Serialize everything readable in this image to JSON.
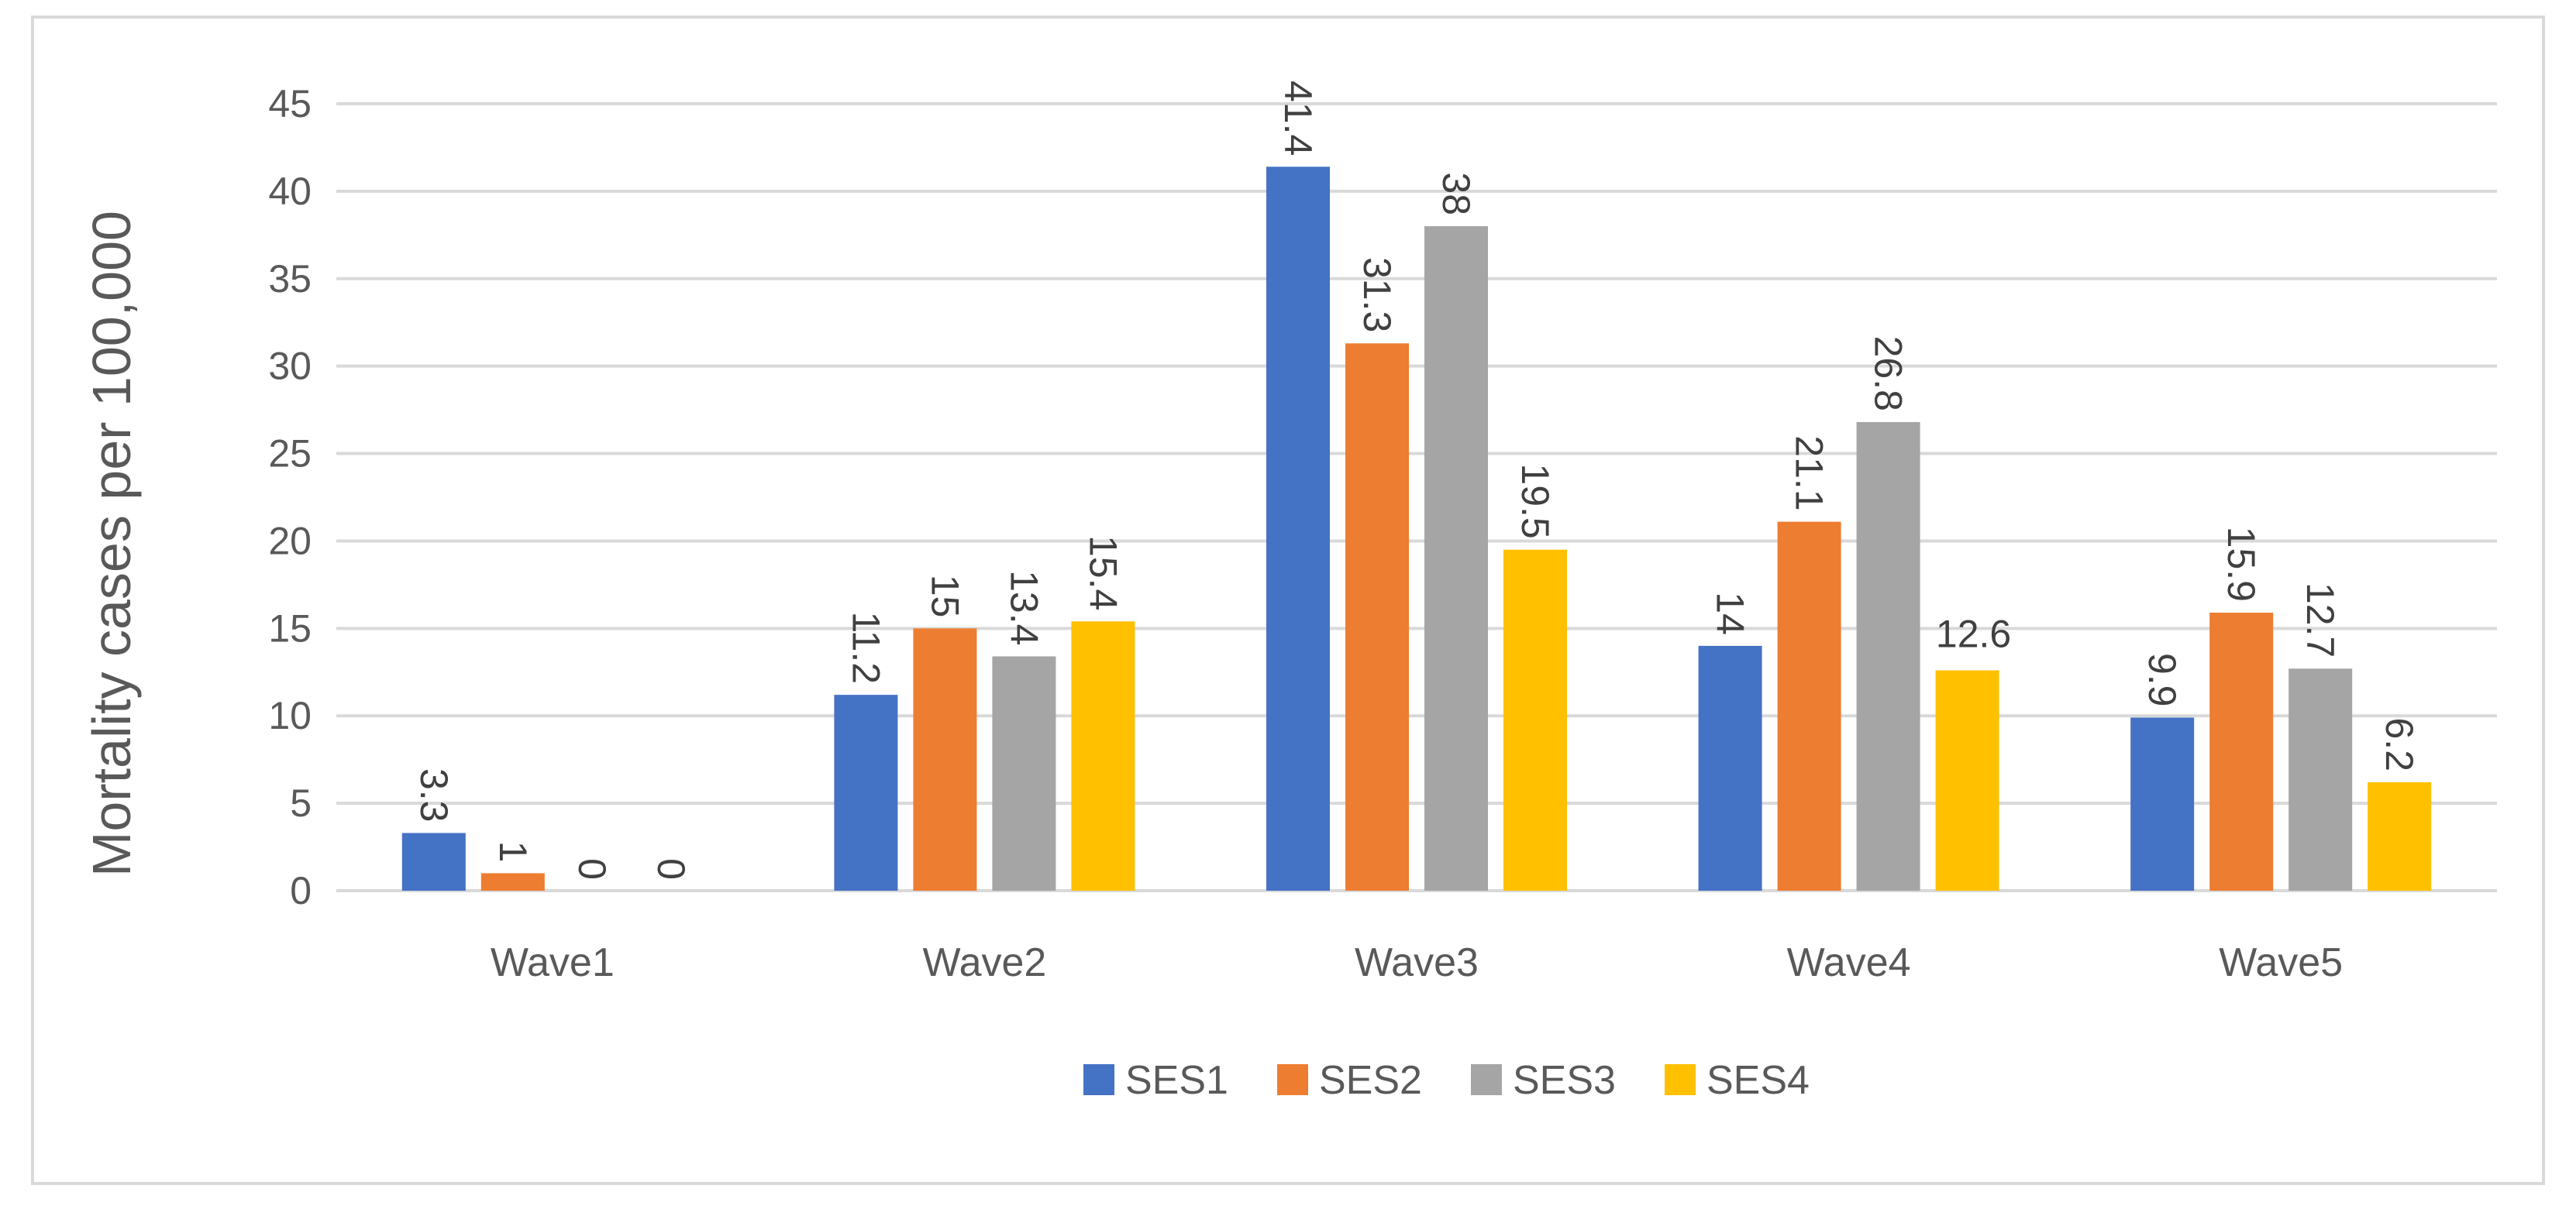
{
  "chart_data": {
    "type": "bar",
    "title": "",
    "xlabel": "",
    "ylabel": "Mortality cases per 100,000",
    "ylim": [
      0,
      45
    ],
    "ytick_step": 5,
    "yticks": [
      "0",
      "5",
      "10",
      "15",
      "20",
      "25",
      "30",
      "35",
      "40",
      "45"
    ],
    "grid": true,
    "legend_position": "bottom",
    "categories": [
      "Wave1",
      "Wave2",
      "Wave3",
      "Wave4",
      "Wave5"
    ],
    "series": [
      {
        "name": "SES1",
        "color": "#4472C4",
        "values": [
          3.3,
          11.2,
          41.4,
          14,
          9.9
        ],
        "labels": [
          "3.3",
          "11.2",
          "41.4",
          "14",
          "9.9"
        ],
        "label_rotated": [
          true,
          true,
          true,
          true,
          true
        ]
      },
      {
        "name": "SES2",
        "color": "#ED7D31",
        "values": [
          1,
          15,
          31.3,
          21.1,
          15.9
        ],
        "labels": [
          "1",
          "15",
          "31.3",
          "21.1",
          "15.9"
        ],
        "label_rotated": [
          true,
          true,
          true,
          true,
          true
        ]
      },
      {
        "name": "SES3",
        "color": "#A5A5A5",
        "values": [
          0,
          13.4,
          38,
          26.8,
          12.7
        ],
        "labels": [
          "0",
          "13.4",
          "38",
          "26.8",
          "12.7"
        ],
        "label_rotated": [
          true,
          true,
          true,
          true,
          true
        ]
      },
      {
        "name": "SES4",
        "color": "#FFC000",
        "values": [
          0,
          15.4,
          19.5,
          12.6,
          6.2
        ],
        "labels": [
          "0",
          "15.4",
          "19.5",
          "12.6",
          "6.2"
        ],
        "label_rotated": [
          true,
          true,
          true,
          false,
          true
        ]
      }
    ]
  }
}
